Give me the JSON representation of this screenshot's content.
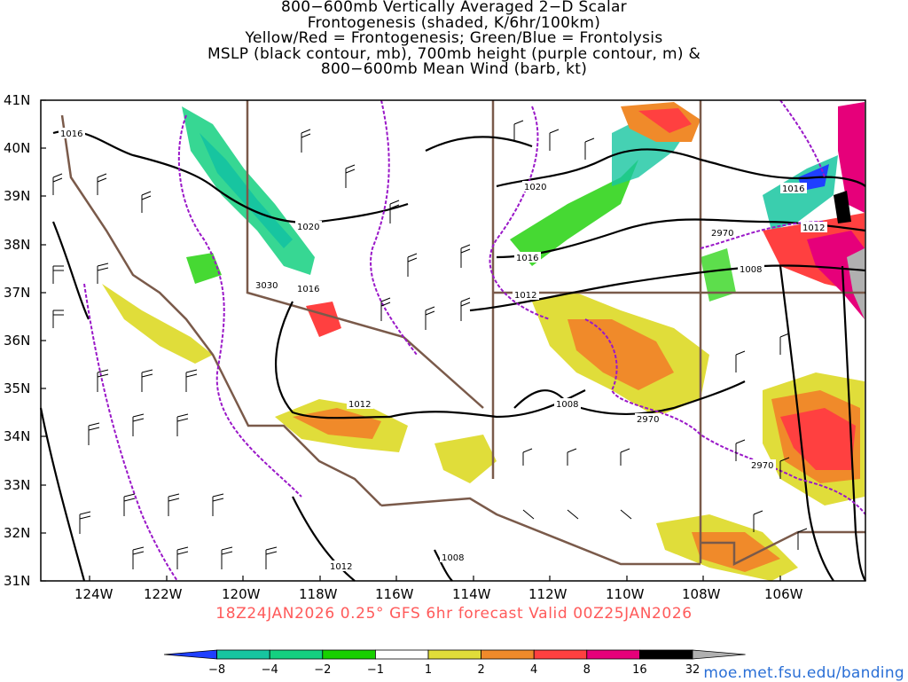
{
  "title_lines": [
    "800−600mb Vertically Averaged 2−D Scalar",
    "Frontogenesis (shaded, K/6hr/100km)",
    "Yellow/Red = Frontogenesis;  Green/Blue = Frontolysis",
    "MSLP (black contour, mb), 700mb height (purple contour, m) &",
    "800−600mb Mean Wind (barb, kt)"
  ],
  "run_info": "18Z24JAN2026 0.25° GFS 6hr forecast Valid 00Z25JAN2026",
  "source_url": "moe.met.fsu.edu/banding",
  "map": {
    "lat_labels": [
      "41N",
      "40N",
      "39N",
      "38N",
      "37N",
      "36N",
      "35N",
      "34N",
      "33N",
      "32N",
      "31N"
    ],
    "lon_labels": [
      "124W",
      "122W",
      "120W",
      "118W",
      "116W",
      "114W",
      "112W",
      "110W",
      "108W",
      "106W"
    ],
    "mslp_labels": [
      "1016",
      "1020",
      "1016",
      "1020",
      "1016",
      "1016",
      "1012",
      "1012",
      "1008",
      "1012",
      "1008",
      "1008",
      "1012"
    ],
    "height_labels": [
      "3030",
      "2970",
      "2970",
      "2970"
    ]
  },
  "colorbar": {
    "ticks": [
      "−8",
      "−4",
      "−2",
      "−1",
      "1",
      "2",
      "4",
      "8",
      "16",
      "32"
    ],
    "colors": [
      "#1f3fff",
      "#17c5a0",
      "#14d080",
      "#18d000",
      "#ffffff",
      "#e0dd3a",
      "#f08a2a",
      "#ff4040",
      "#e6007a",
      "#000000",
      "#b0b0b0"
    ]
  }
}
